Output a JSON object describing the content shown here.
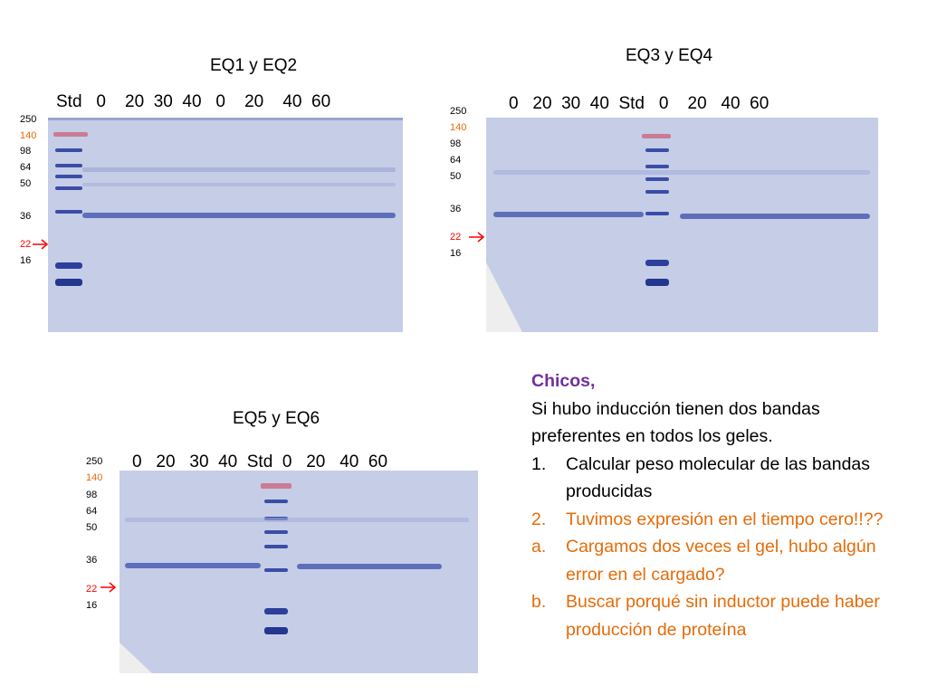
{
  "colors": {
    "heading": "#7030a0",
    "orange": "#e46c0a",
    "marker_red": "#ff0000",
    "marker_orange": "#e46c0a",
    "gel_bg": "#c6cde7",
    "band": "#3c4fa8"
  },
  "gels": [
    {
      "title": "EQ1 y EQ2",
      "lanes": "Std   0    20  30  40   0    20    40  60",
      "markers": [
        "250",
        "140",
        "98",
        "64",
        "50",
        "36",
        "22",
        "16"
      ]
    },
    {
      "title": "EQ3 y EQ4",
      "lanes": "0   20  30  40  Std   0    20   40  60",
      "markers": [
        "250",
        "140",
        "98",
        "64",
        "50",
        "36",
        "22",
        "16"
      ]
    },
    {
      "title": "EQ5 y EQ6",
      "lanes": "0   20   30  40  Std  0   20   40  60",
      "markers": [
        "250",
        "140",
        "98",
        "64",
        "50",
        "36",
        "22",
        "16"
      ]
    }
  ],
  "notes": {
    "heading": "Chicos,",
    "intro": "Si hubo inducción tienen dos bandas preferentes en todos los geles.",
    "items": [
      {
        "marker": "1.",
        "text": "Calcular peso molecular de las bandas producidas",
        "color": "#000000"
      },
      {
        "marker": "2.",
        "text": "Tuvimos expresión en el tiempo cero!!??",
        "color": "#e46c0a"
      },
      {
        "marker": "a.",
        "text": "Cargamos dos veces el gel, hubo algún error en el cargado?",
        "color": "#e46c0a"
      },
      {
        "marker": "b.",
        "text": "Buscar porqué sin inductor puede haber producción de proteína",
        "color": "#e46c0a"
      }
    ]
  }
}
